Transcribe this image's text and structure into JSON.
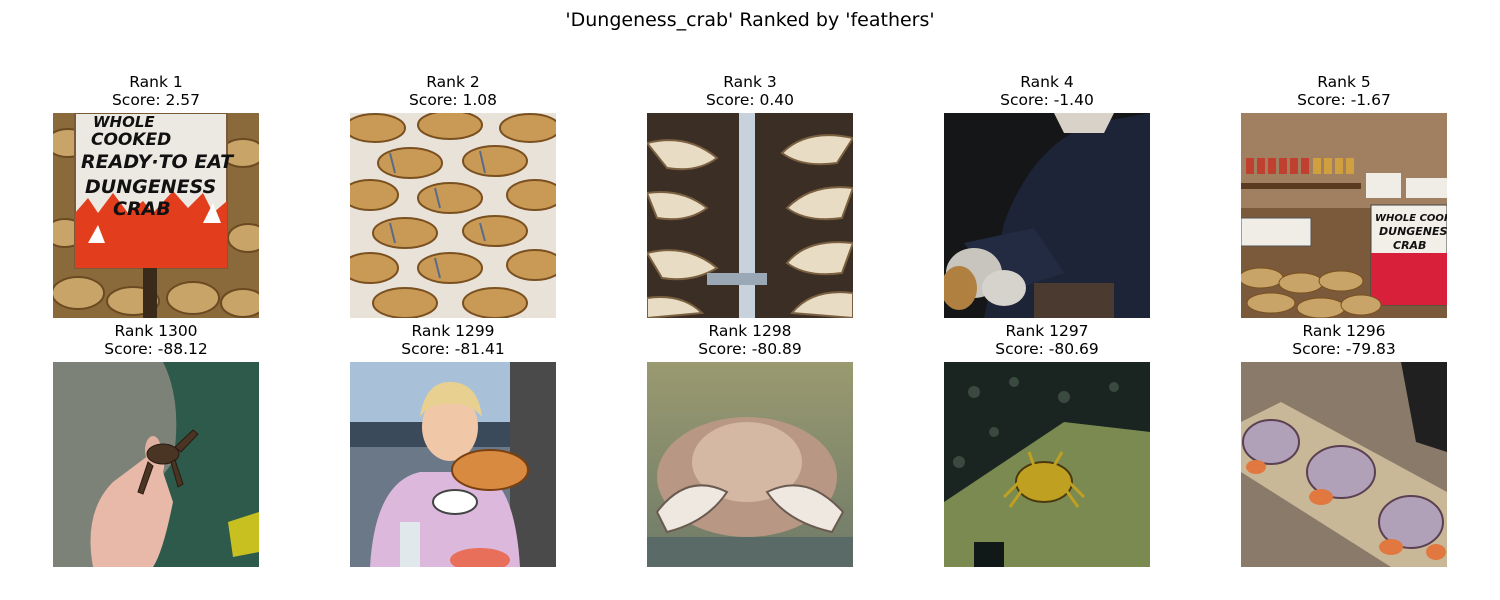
{
  "figure": {
    "title": "'Dungeness_crab' Ranked by 'feathers'"
  },
  "top_row": [
    {
      "rank": "Rank 1",
      "score": "Score: 2.57",
      "image": "crab-sign-photo"
    },
    {
      "rank": "Rank 2",
      "score": "Score: 1.08",
      "image": "crab-pile-photo"
    },
    {
      "rank": "Rank 3",
      "score": "Score: 0.40",
      "image": "crab-legs-closeup-photo"
    },
    {
      "rank": "Rank 4",
      "score": "Score: -1.40",
      "image": "person-holding-crab-photo"
    },
    {
      "rank": "Rank 5",
      "score": "Score: -1.67",
      "image": "market-stall-photo"
    }
  ],
  "bottom_row": [
    {
      "rank": "Rank 1300",
      "score": "Score: -88.12",
      "image": "hand-holding-small-crab-photo"
    },
    {
      "rank": "Rank 1299",
      "score": "Score: -81.41",
      "image": "woman-holding-crab-photo"
    },
    {
      "rank": "Rank 1298",
      "score": "Score: -80.89",
      "image": "crab-in-tank-photo"
    },
    {
      "rank": "Rank 1297",
      "score": "Score: -80.69",
      "image": "crab-underwater-photo"
    },
    {
      "rank": "Rank 1296",
      "score": "Score: -79.83",
      "image": "crabs-on-board-photo"
    }
  ],
  "sign_text": {
    "panel1_line1": "WHOLE",
    "panel1_line2": "COOKED",
    "panel1_line3": "READY·TO EAT",
    "panel1_line4": "DUNGENESS",
    "panel1_line5": "CRAB",
    "panel5_line1": "WHOLE COOKED",
    "panel5_line2": "DUNGENESS",
    "panel5_line3": "CRAB"
  }
}
